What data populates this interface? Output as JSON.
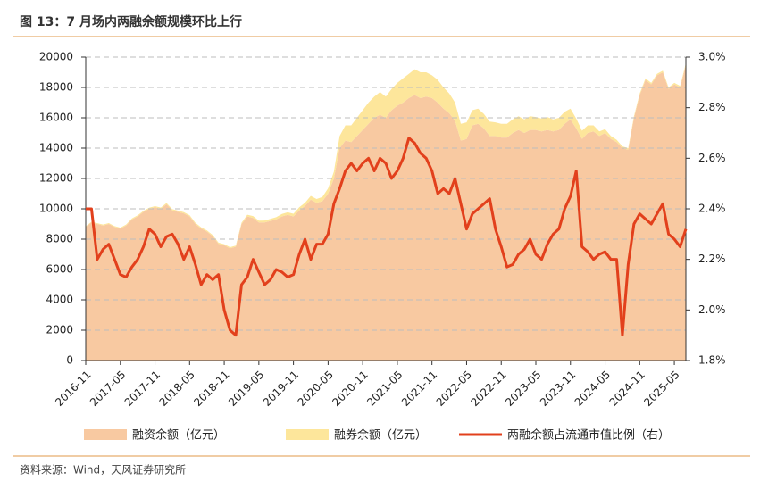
{
  "chart_data": {
    "type": "stacked-area-line",
    "title": "图 13：7 月场内两融余额规模环比上行",
    "source": "资料来源：Wind，天风证券研究所",
    "categories": [
      "2016-11",
      null,
      null,
      null,
      null,
      null,
      "2017-05",
      null,
      null,
      null,
      null,
      null,
      "2017-11",
      null,
      null,
      null,
      null,
      null,
      "2018-05",
      null,
      null,
      null,
      null,
      null,
      "2018-11",
      null,
      null,
      null,
      null,
      null,
      "2019-05",
      null,
      null,
      null,
      null,
      null,
      "2019-11",
      null,
      null,
      null,
      null,
      null,
      "2020-05",
      null,
      null,
      null,
      null,
      null,
      "2020-11",
      null,
      null,
      null,
      null,
      null,
      "2021-05",
      null,
      null,
      null,
      null,
      null,
      "2021-11",
      null,
      null,
      null,
      null,
      null,
      "2022-05",
      null,
      null,
      null,
      null,
      null,
      "2022-11",
      null,
      null,
      null,
      null,
      null,
      "2023-05",
      null,
      null,
      null,
      null,
      null,
      "2023-11",
      null,
      null,
      null,
      null,
      null,
      "2024-05",
      null,
      null,
      null,
      null,
      null,
      "2024-11",
      null,
      null,
      null,
      null,
      null,
      "2025-05",
      null,
      null
    ],
    "series": [
      {
        "name": "融资余额（亿元）",
        "kind": "area",
        "color": "#f8c9a1",
        "values": [
          8800,
          9100,
          9000,
          8900,
          9000,
          8800,
          8700,
          8900,
          9300,
          9500,
          9800,
          10000,
          10100,
          10000,
          10300,
          9900,
          9800,
          9700,
          9500,
          9000,
          8700,
          8500,
          8200,
          7700,
          7600,
          7400,
          7500,
          9000,
          9500,
          9400,
          9100,
          9100,
          9200,
          9300,
          9500,
          9600,
          9500,
          9900,
          10200,
          10600,
          10400,
          10500,
          11000,
          12000,
          14000,
          14500,
          14400,
          14800,
          15200,
          15600,
          16000,
          16200,
          16000,
          16500,
          16800,
          17000,
          17300,
          17500,
          17300,
          17400,
          17300,
          17000,
          16600,
          16300,
          15800,
          14500,
          14600,
          15500,
          15600,
          15300,
          14800,
          14800,
          14700,
          14700,
          15000,
          15200,
          15000,
          15200,
          15200,
          15100,
          15200,
          15100,
          15200,
          15600,
          15900,
          15300,
          14600,
          15000,
          15100,
          14800,
          15000,
          14600,
          14400,
          14000,
          13900,
          16000,
          17500,
          18500,
          18200,
          18800,
          19000,
          17900,
          18200,
          18000,
          19500
        ]
      },
      {
        "name": "融券余额（亿元）",
        "kind": "area",
        "color": "#fde69b",
        "values": [
          50,
          50,
          50,
          60,
          60,
          60,
          60,
          60,
          70,
          70,
          70,
          70,
          80,
          80,
          80,
          80,
          80,
          80,
          80,
          80,
          80,
          70,
          70,
          70,
          70,
          70,
          70,
          80,
          110,
          120,
          120,
          130,
          140,
          150,
          160,
          170,
          180,
          200,
          200,
          250,
          250,
          280,
          350,
          450,
          800,
          1000,
          1100,
          1200,
          1300,
          1400,
          1400,
          1500,
          1400,
          1400,
          1500,
          1600,
          1600,
          1700,
          1700,
          1600,
          1500,
          1500,
          1400,
          1300,
          1200,
          1100,
          1100,
          1000,
          1000,
          950,
          950,
          900,
          900,
          900,
          900,
          900,
          900,
          900,
          850,
          850,
          850,
          800,
          800,
          800,
          700,
          650,
          550,
          500,
          400,
          300,
          250,
          200,
          150,
          120,
          100,
          100,
          100,
          100,
          100,
          100,
          100,
          100,
          100,
          100,
          100
        ]
      },
      {
        "name": "两融余额占流通市值比例（右）",
        "kind": "line",
        "axis": "y2",
        "color": "#e2401c",
        "values": [
          2.4,
          2.4,
          2.2,
          2.24,
          2.26,
          2.2,
          2.14,
          2.13,
          2.17,
          2.2,
          2.25,
          2.32,
          2.3,
          2.25,
          2.29,
          2.3,
          2.26,
          2.2,
          2.25,
          2.18,
          2.1,
          2.14,
          2.12,
          2.14,
          2.0,
          1.92,
          1.9,
          2.1,
          2.13,
          2.2,
          2.15,
          2.1,
          2.12,
          2.16,
          2.15,
          2.13,
          2.14,
          2.22,
          2.28,
          2.2,
          2.26,
          2.26,
          2.3,
          2.42,
          2.48,
          2.55,
          2.58,
          2.55,
          2.58,
          2.6,
          2.55,
          2.6,
          2.58,
          2.52,
          2.55,
          2.6,
          2.68,
          2.66,
          2.62,
          2.6,
          2.55,
          2.46,
          2.48,
          2.46,
          2.52,
          2.42,
          2.32,
          2.38,
          2.4,
          2.42,
          2.44,
          2.32,
          2.25,
          2.17,
          2.18,
          2.22,
          2.24,
          2.28,
          2.22,
          2.2,
          2.26,
          2.3,
          2.32,
          2.4,
          2.45,
          2.55,
          2.25,
          2.23,
          2.2,
          2.22,
          2.23,
          2.2,
          2.2,
          1.9,
          2.18,
          2.34,
          2.38,
          2.36,
          2.34,
          2.38,
          2.42,
          2.3,
          2.28,
          2.25,
          2.32
        ]
      }
    ],
    "ylim": [
      0,
      20000
    ],
    "yticks": [
      0,
      2000,
      4000,
      6000,
      8000,
      10000,
      12000,
      14000,
      16000,
      18000,
      20000
    ],
    "y2lim": [
      1.8,
      3.0
    ],
    "y2ticks": [
      {
        "value": 1.8,
        "label": "1.8%"
      },
      {
        "value": 2.0,
        "label": "2.0%"
      },
      {
        "value": 2.2,
        "label": "2.2%"
      },
      {
        "value": 2.4,
        "label": "2.4%"
      },
      {
        "value": 2.6,
        "label": "2.6%"
      },
      {
        "value": 2.8,
        "label": "2.8%"
      },
      {
        "value": 3.0,
        "label": "3.0%"
      }
    ],
    "grid": true
  }
}
